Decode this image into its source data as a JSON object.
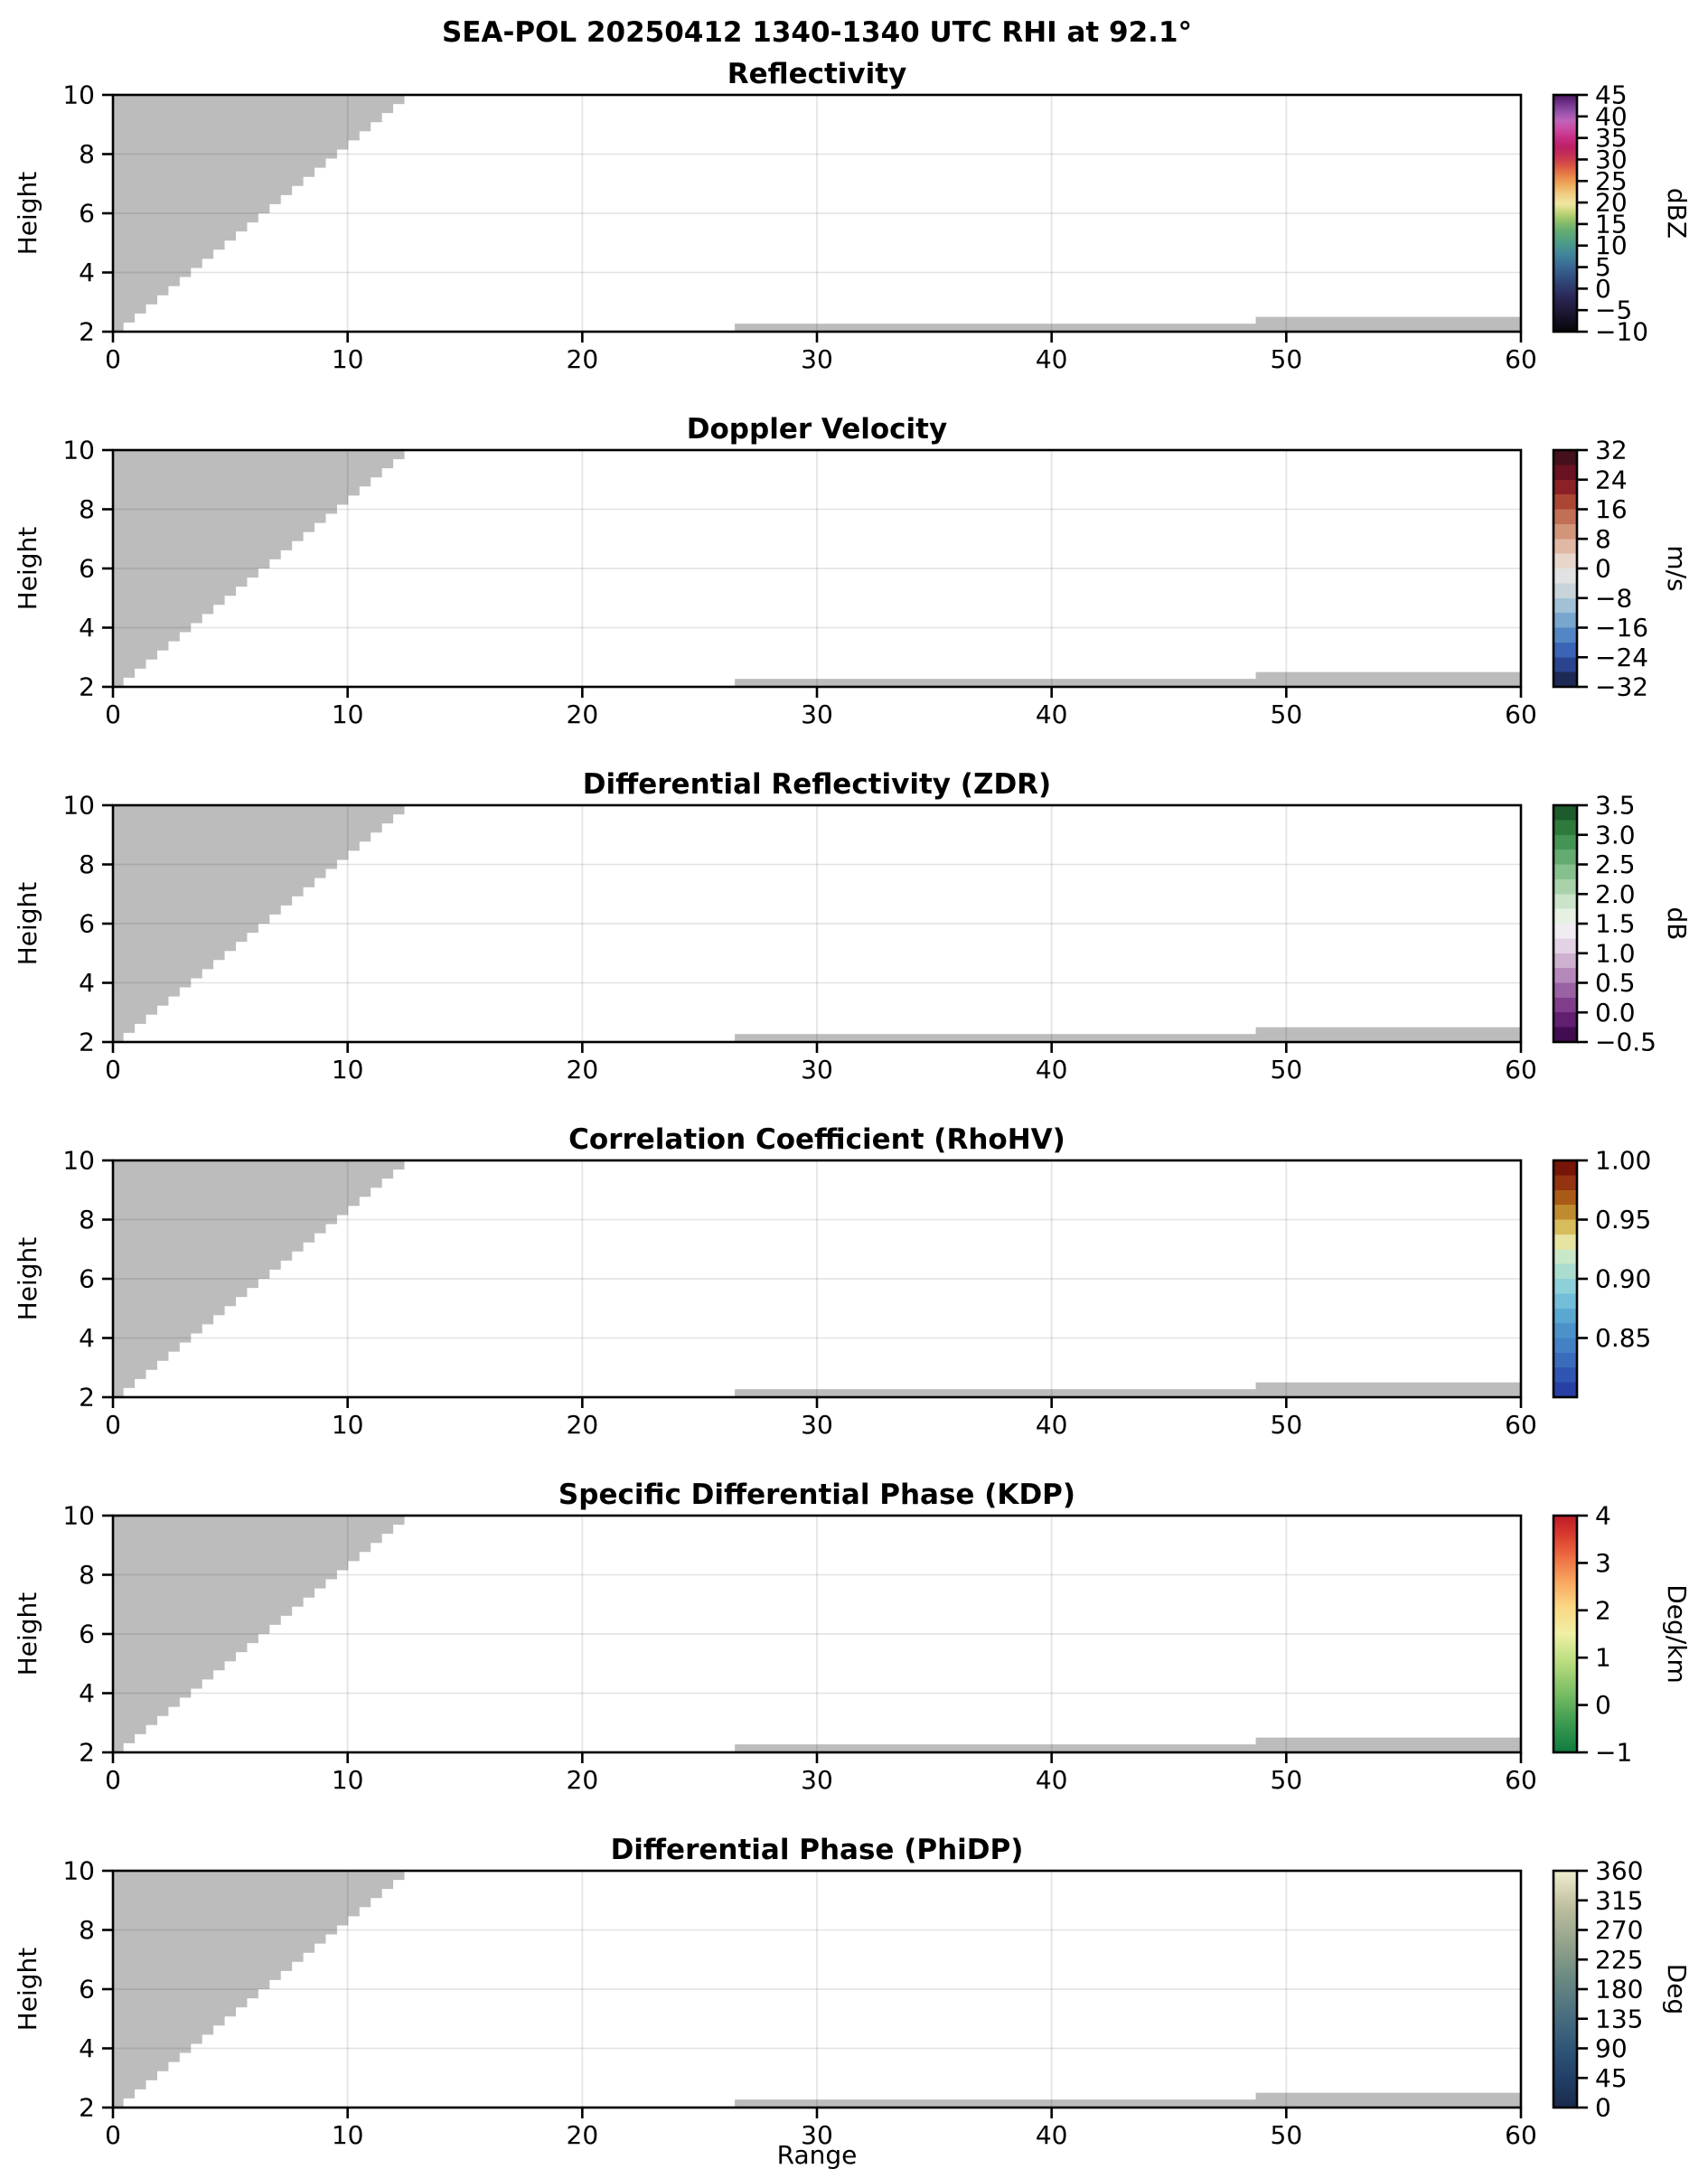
{
  "figure_title": "SEA-POL 20250412 1340-1340 UTC RHI at 92.1°",
  "xlabel": "Range",
  "ylabel": "Height",
  "x_tick_labels": [
    "0",
    "10",
    "20",
    "30",
    "40",
    "50",
    "60"
  ],
  "y_tick_labels": [
    "10",
    "8",
    "6",
    "4",
    "2"
  ],
  "colors": {
    "background": "#ffffff",
    "mask_gray": "#bcbcbc",
    "grid": "rgba(0,0,0,0.10)",
    "spine": "#000000"
  },
  "chart_data": {
    "type": "heatmap",
    "title": "SEA-POL 20250412 1340-1340 UTC RHI at 92.1°",
    "xlabel": "Range",
    "ylabel": "Height",
    "x_range": [
      0,
      60
    ],
    "y_range": [
      2,
      10
    ],
    "x_ticks": [
      0,
      10,
      20,
      30,
      40,
      50,
      60
    ],
    "y_ticks": [
      2,
      4,
      6,
      8,
      10
    ],
    "grid_x": [
      10,
      20,
      30,
      40,
      50
    ],
    "grid_y": [
      4,
      6,
      8
    ],
    "grid_on": true,
    "masked_regions": {
      "wedge": {
        "h_bottom": 2.0,
        "h_top": 10.0,
        "x_at_bottom": 0.45,
        "x_at_top": 12.9,
        "steps": 26
      },
      "strips": [
        {
          "x0": 26.5,
          "x1": 60,
          "h0": 2.0,
          "h1": 2.27
        },
        {
          "x0": 48.7,
          "x1": 60,
          "h0": 2.0,
          "h1": 2.5
        }
      ]
    },
    "panels": [
      {
        "id": "reflectivity",
        "title": "Reflectivity",
        "unit": "dBZ",
        "vmin": -10,
        "vmax": 45,
        "cbar_ticks": [
          45,
          40,
          35,
          30,
          25,
          20,
          15,
          10,
          5,
          0,
          -5,
          -10
        ],
        "cbar_labels": [
          "45",
          "40",
          "35",
          "30",
          "25",
          "20",
          "15",
          "10",
          "5",
          "0",
          "−5",
          "−10"
        ],
        "cmap": {
          "type": "continuous",
          "stops": [
            [
              0,
              "#060608"
            ],
            [
              0.05,
              "#140f22"
            ],
            [
              0.1,
              "#221b3c"
            ],
            [
              0.16,
              "#2b2d5e"
            ],
            [
              0.22,
              "#304a7c"
            ],
            [
              0.28,
              "#3a6b95"
            ],
            [
              0.33,
              "#428799"
            ],
            [
              0.38,
              "#4f9d87"
            ],
            [
              0.43,
              "#66ae70"
            ],
            [
              0.47,
              "#93c169"
            ],
            [
              0.51,
              "#ccd87e"
            ],
            [
              0.54,
              "#efe6a4"
            ],
            [
              0.58,
              "#f0cf85"
            ],
            [
              0.62,
              "#eeab5d"
            ],
            [
              0.66,
              "#e88247"
            ],
            [
              0.7,
              "#da5645"
            ],
            [
              0.74,
              "#c63353"
            ],
            [
              0.78,
              "#bd2064"
            ],
            [
              0.82,
              "#c62f84"
            ],
            [
              0.86,
              "#cb4da4"
            ],
            [
              0.89,
              "#bd64b8"
            ],
            [
              0.93,
              "#9350a8"
            ],
            [
              0.97,
              "#6c2f85"
            ],
            [
              1,
              "#491a5e"
            ]
          ]
        }
      },
      {
        "id": "velocity",
        "title": "Doppler Velocity",
        "unit": "m/s",
        "vmin": -32,
        "vmax": 32,
        "cbar_ticks": [
          32,
          24,
          16,
          8,
          0,
          -8,
          -16,
          -24,
          -32
        ],
        "cbar_labels": [
          "32",
          "24",
          "16",
          "8",
          "0",
          "−8",
          "−16",
          "−24",
          "−32"
        ],
        "cmap": {
          "type": "discrete",
          "colors": [
            "#1d2a55",
            "#2a4490",
            "#3a64b5",
            "#5286c4",
            "#79a6ce",
            "#a2c0d6",
            "#c8d4da",
            "#e0e2e3",
            "#e9d6cb",
            "#e0b8a4",
            "#d2957a",
            "#c16f55",
            "#ab4634",
            "#8c2027",
            "#691222",
            "#43101b"
          ]
        }
      },
      {
        "id": "zdr",
        "title": "Differential Reflectivity (ZDR)",
        "unit": "dB",
        "vmin": -0.5,
        "vmax": 3.5,
        "cbar_ticks": [
          3.5,
          3,
          2.5,
          2,
          1.5,
          1,
          0.5,
          0,
          -0.5
        ],
        "cbar_labels": [
          "3.5",
          "3.0",
          "2.5",
          "2.0",
          "1.5",
          "1.0",
          "0.5",
          "0.0",
          "−0.5"
        ],
        "cmap": {
          "type": "discrete",
          "colors": [
            "#410c50",
            "#611f70",
            "#7f3d8c",
            "#9a62a3",
            "#b489ba",
            "#ceb0d0",
            "#e3d2e4",
            "#f1ecf2",
            "#e6f1e3",
            "#cbe3c9",
            "#a9d2ab",
            "#87c08f",
            "#63ab70",
            "#449554",
            "#2d7a3c",
            "#1c5c2c"
          ]
        }
      },
      {
        "id": "rhohv",
        "title": "Correlation Coefficient (RhoHV)",
        "unit": "",
        "vmin": 0.8,
        "vmax": 1.0,
        "cbar_ticks": [
          1.0,
          0.95,
          0.9,
          0.85
        ],
        "cbar_labels": [
          "1.00",
          "0.95",
          "0.90",
          "0.85"
        ],
        "cmap": {
          "type": "discrete",
          "colors": [
            "#2840a4",
            "#3155b2",
            "#3a6cbc",
            "#4380c4",
            "#4b92ca",
            "#5aa8d2",
            "#72bed8",
            "#8ed0d8",
            "#abdcd0",
            "#c9e8c8",
            "#e7e3a0",
            "#d6bc5c",
            "#c08b2e",
            "#aa5a17",
            "#933310",
            "#771508"
          ]
        }
      },
      {
        "id": "kdp",
        "title": "Specific Differential Phase (KDP)",
        "unit": "Deg/km",
        "vmin": -1,
        "vmax": 4,
        "cbar_ticks": [
          4,
          3,
          2,
          1,
          0,
          -1
        ],
        "cbar_labels": [
          "4",
          "3",
          "2",
          "1",
          "0",
          "−1"
        ],
        "cmap": {
          "type": "continuous",
          "stops": [
            [
              0,
              "#0f7b3d"
            ],
            [
              0.12,
              "#3a9a51"
            ],
            [
              0.25,
              "#79bd63"
            ],
            [
              0.38,
              "#b8dc7e"
            ],
            [
              0.5,
              "#eff0a5"
            ],
            [
              0.62,
              "#fbd582"
            ],
            [
              0.72,
              "#f9a75f"
            ],
            [
              0.82,
              "#ef7044"
            ],
            [
              0.92,
              "#d83a2e"
            ],
            [
              1,
              "#bc1b28"
            ]
          ]
        }
      },
      {
        "id": "phidp",
        "title": "Differential Phase (PhiDP)",
        "unit": "Deg",
        "vmin": 0,
        "vmax": 360,
        "cbar_ticks": [
          360,
          315,
          270,
          225,
          180,
          135,
          90,
          45,
          0
        ],
        "cbar_labels": [
          "360",
          "315",
          "270",
          "225",
          "180",
          "135",
          "90",
          "45",
          "0"
        ],
        "cmap": {
          "type": "continuous",
          "stops": [
            [
              0,
              "#1a2a4c"
            ],
            [
              0.12,
              "#213e66"
            ],
            [
              0.25,
              "#2f5678"
            ],
            [
              0.4,
              "#4c7080"
            ],
            [
              0.55,
              "#6c8a82"
            ],
            [
              0.7,
              "#94a48c"
            ],
            [
              0.85,
              "#c0bfa0"
            ],
            [
              1,
              "#f0ecd0"
            ]
          ]
        }
      }
    ]
  }
}
